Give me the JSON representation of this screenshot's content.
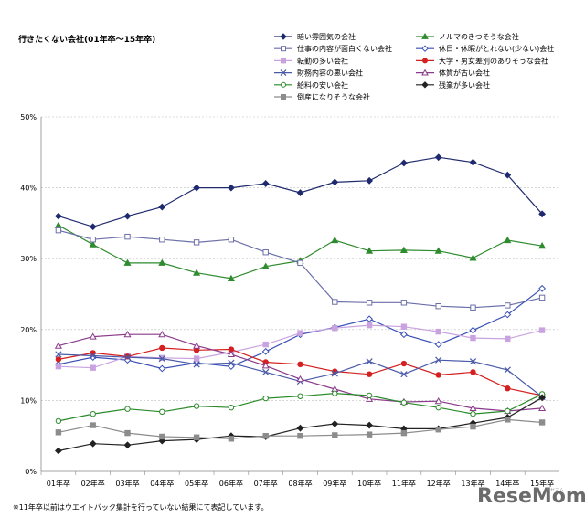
{
  "chart_data": {
    "type": "line",
    "title": "行きたくない会社(01年卒～15年卒)",
    "categories": [
      "01年卒",
      "02年卒",
      "03年卒",
      "04年卒",
      "05年卒",
      "06年卒",
      "07年卒",
      "08年卒",
      "09年卒",
      "10年卒",
      "11年卒",
      "12年卒",
      "13年卒",
      "14年卒",
      "15年卒"
    ],
    "yticks": [
      "0%",
      "10%",
      "20%",
      "30%",
      "40%",
      "50%"
    ],
    "ylim": [
      0,
      50
    ],
    "grid": true,
    "legend_position": "top-right",
    "series": [
      {
        "name": "暗い雰囲気の会社",
        "color": "#1f2a6e",
        "marker": "diamond",
        "filled": true,
        "values": [
          36.0,
          34.5,
          36.0,
          37.3,
          40.0,
          40.0,
          40.6,
          39.3,
          40.8,
          41.0,
          43.5,
          44.3,
          43.6,
          41.8,
          36.3
        ]
      },
      {
        "name": "ノルマのきつそうな会社",
        "color": "#2e8b2e",
        "marker": "triangle",
        "filled": true,
        "values": [
          34.7,
          32.0,
          29.4,
          29.4,
          28.0,
          27.2,
          28.9,
          29.7,
          32.6,
          31.1,
          31.2,
          31.1,
          30.1,
          32.6,
          31.8
        ]
      },
      {
        "name": "仕事の内容が面白くない会社",
        "color": "#6b6fa8",
        "marker": "square",
        "filled": false,
        "values": [
          34.0,
          32.7,
          33.1,
          32.7,
          32.3,
          32.7,
          30.9,
          29.4,
          23.9,
          23.8,
          23.8,
          23.3,
          23.1,
          23.4,
          24.5
        ]
      },
      {
        "name": "休日・休暇がとれない(少ない)会社",
        "color": "#3a4fb5",
        "marker": "diamond",
        "filled": false,
        "values": [
          15.1,
          16.1,
          15.7,
          14.5,
          15.3,
          14.8,
          16.9,
          19.3,
          20.3,
          21.5,
          19.3,
          17.9,
          19.9,
          22.1,
          25.8
        ]
      },
      {
        "name": "転勤の多い会社",
        "color": "#c9a3e0",
        "marker": "square",
        "filled": true,
        "values": [
          14.8,
          14.6,
          16.2,
          16.0,
          15.9,
          16.8,
          17.9,
          19.5,
          20.2,
          20.6,
          20.4,
          19.7,
          18.8,
          18.7,
          19.9
        ]
      },
      {
        "name": "大学・男女差別のありそうな会社",
        "color": "#d42020",
        "marker": "circle",
        "filled": true,
        "values": [
          15.8,
          16.7,
          16.2,
          17.4,
          17.1,
          17.2,
          15.4,
          15.1,
          14.1,
          13.7,
          15.2,
          13.6,
          14.0,
          11.7,
          10.7
        ]
      },
      {
        "name": "財務内容の悪い会社",
        "color": "#4a5aa8",
        "marker": "x",
        "filled": false,
        "values": [
          16.5,
          16.3,
          16.1,
          15.9,
          15.1,
          15.3,
          14.0,
          12.7,
          13.8,
          15.5,
          13.7,
          15.7,
          15.5,
          14.3,
          10.5
        ]
      },
      {
        "name": "体質が古い会社",
        "color": "#8a3a8a",
        "marker": "triangle",
        "filled": false,
        "values": [
          17.7,
          19.0,
          19.3,
          19.3,
          17.7,
          16.5,
          14.9,
          13.0,
          11.6,
          10.2,
          9.8,
          9.9,
          8.9,
          8.5,
          8.9
        ]
      },
      {
        "name": "給料の安い会社",
        "color": "#2a8a2a",
        "marker": "circle",
        "filled": false,
        "values": [
          7.1,
          8.1,
          8.8,
          8.4,
          9.2,
          9.0,
          10.3,
          10.6,
          11.0,
          10.7,
          9.7,
          9.0,
          8.1,
          8.5,
          10.9
        ]
      },
      {
        "name": "残業が多い会社",
        "color": "#222222",
        "marker": "diamond",
        "filled": true,
        "values": [
          2.9,
          3.9,
          3.7,
          4.3,
          4.5,
          5.0,
          4.9,
          6.1,
          6.7,
          6.5,
          6.0,
          6.0,
          6.8,
          7.6,
          10.4
        ]
      },
      {
        "name": "倒産になりそうな会社",
        "color": "#8c8c8c",
        "marker": "square",
        "filled": true,
        "values": [
          5.5,
          6.5,
          5.4,
          4.9,
          4.8,
          4.6,
          5.0,
          5.0,
          5.1,
          5.2,
          5.4,
          5.9,
          6.3,
          7.3,
          6.9
        ]
      }
    ]
  },
  "footnote": "※11年卒以前はウエイトバック集計を行っていない結果にて表記しています。",
  "brand": "ReseMom",
  "brand_sub": "リセマム"
}
